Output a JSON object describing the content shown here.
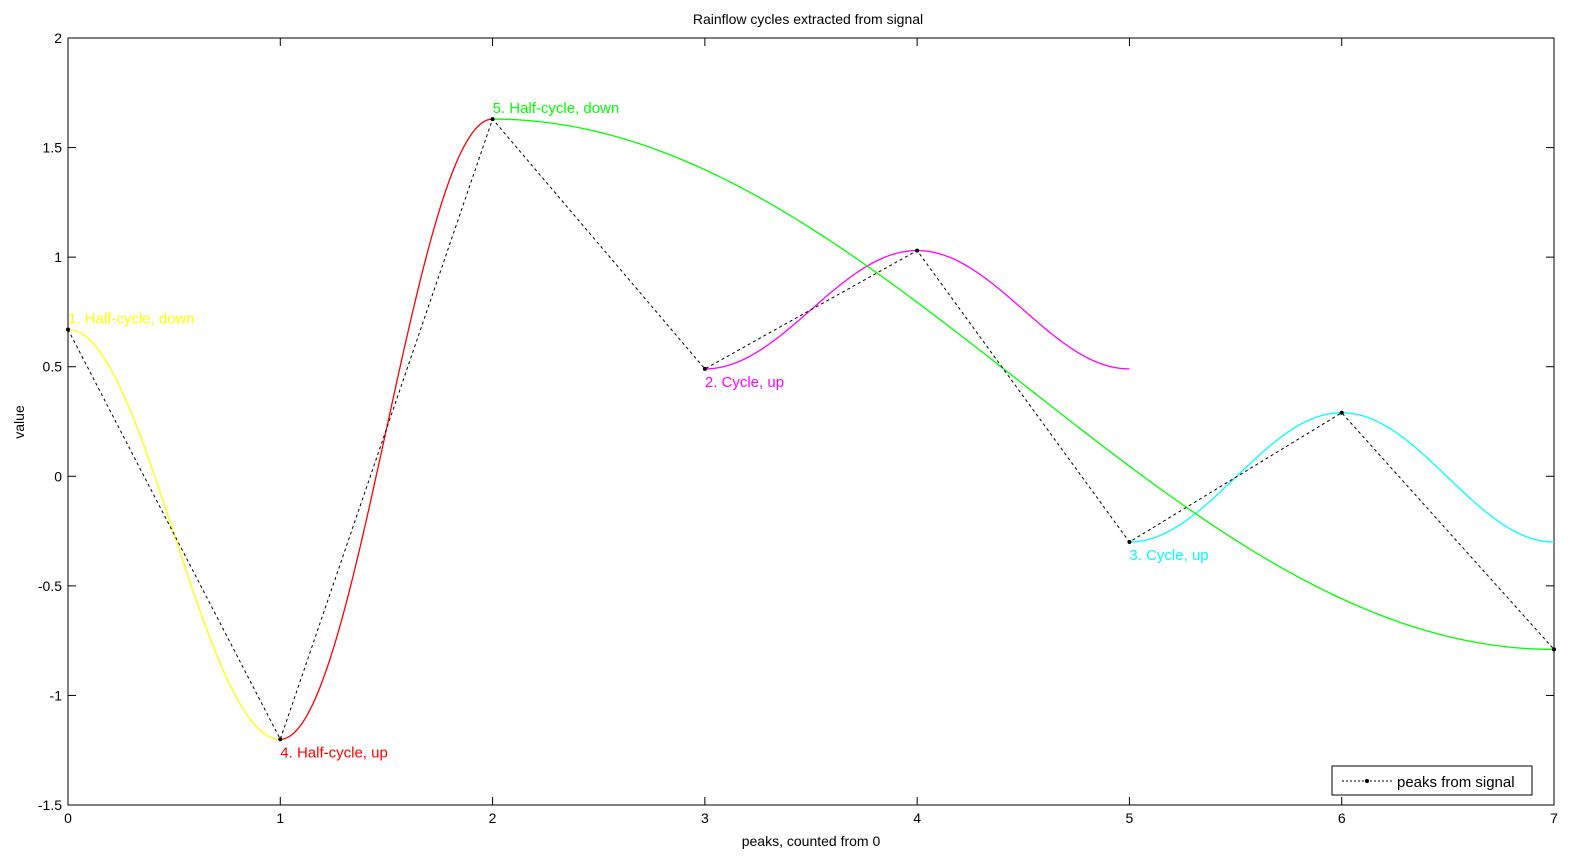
{
  "chart_data": {
    "type": "line",
    "title": "Rainflow cycles extracted from signal",
    "xlabel": "peaks, counted from 0",
    "ylabel": "value",
    "xlim": [
      0,
      7
    ],
    "ylim": [
      -1.5,
      2
    ],
    "xticks": [
      0,
      1,
      2,
      3,
      4,
      5,
      6,
      7
    ],
    "yticks": [
      -1.5,
      -1,
      -0.5,
      0,
      0.5,
      1,
      1.5,
      2
    ],
    "xtick_labels": [
      "0",
      "1",
      "2",
      "3",
      "4",
      "5",
      "6",
      "7"
    ],
    "ytick_labels": [
      "-1.5",
      "-1",
      "-0.5",
      "0",
      "0.5",
      "1",
      "1.5",
      "2"
    ],
    "grid": false,
    "legend": {
      "position": "bottom-right",
      "entries": [
        {
          "label": "peaks from signal",
          "color": "#000000",
          "style": "dotted-with-markers"
        }
      ]
    },
    "peaks": {
      "name": "peaks from signal",
      "color": "#000000",
      "x": [
        0,
        1,
        2,
        3,
        4,
        5,
        6,
        7
      ],
      "y": [
        0.67,
        -1.2,
        1.63,
        0.49,
        1.03,
        -0.3,
        0.29,
        -0.79
      ]
    },
    "cycles": [
      {
        "label": "1. Half-cycle, down",
        "color": "#ffff00",
        "from": [
          0,
          0.67
        ],
        "to": [
          1,
          -1.2
        ],
        "shape": "half",
        "label_anchor": [
          0,
          0.67
        ]
      },
      {
        "label": "2. Cycle, up",
        "color": "#ff00ff",
        "from": [
          3,
          0.49
        ],
        "to": [
          4,
          1.03
        ],
        "shape": "full",
        "label_anchor": [
          3,
          0.49
        ]
      },
      {
        "label": "3. Cycle, up",
        "color": "#00ffff",
        "from": [
          5,
          -0.3
        ],
        "to": [
          6,
          0.29
        ],
        "shape": "full",
        "label_anchor": [
          5,
          -0.3
        ]
      },
      {
        "label": "4. Half-cycle, up",
        "color": "#ff0000",
        "from": [
          1,
          -1.2
        ],
        "to": [
          2,
          1.63
        ],
        "shape": "half",
        "label_anchor": [
          1,
          -1.2
        ]
      },
      {
        "label": "5. Half-cycle, down",
        "color": "#00ff00",
        "from": [
          2,
          1.63
        ],
        "to": [
          7,
          -0.79
        ],
        "shape": "half",
        "label_anchor": [
          2,
          1.63
        ]
      }
    ]
  }
}
